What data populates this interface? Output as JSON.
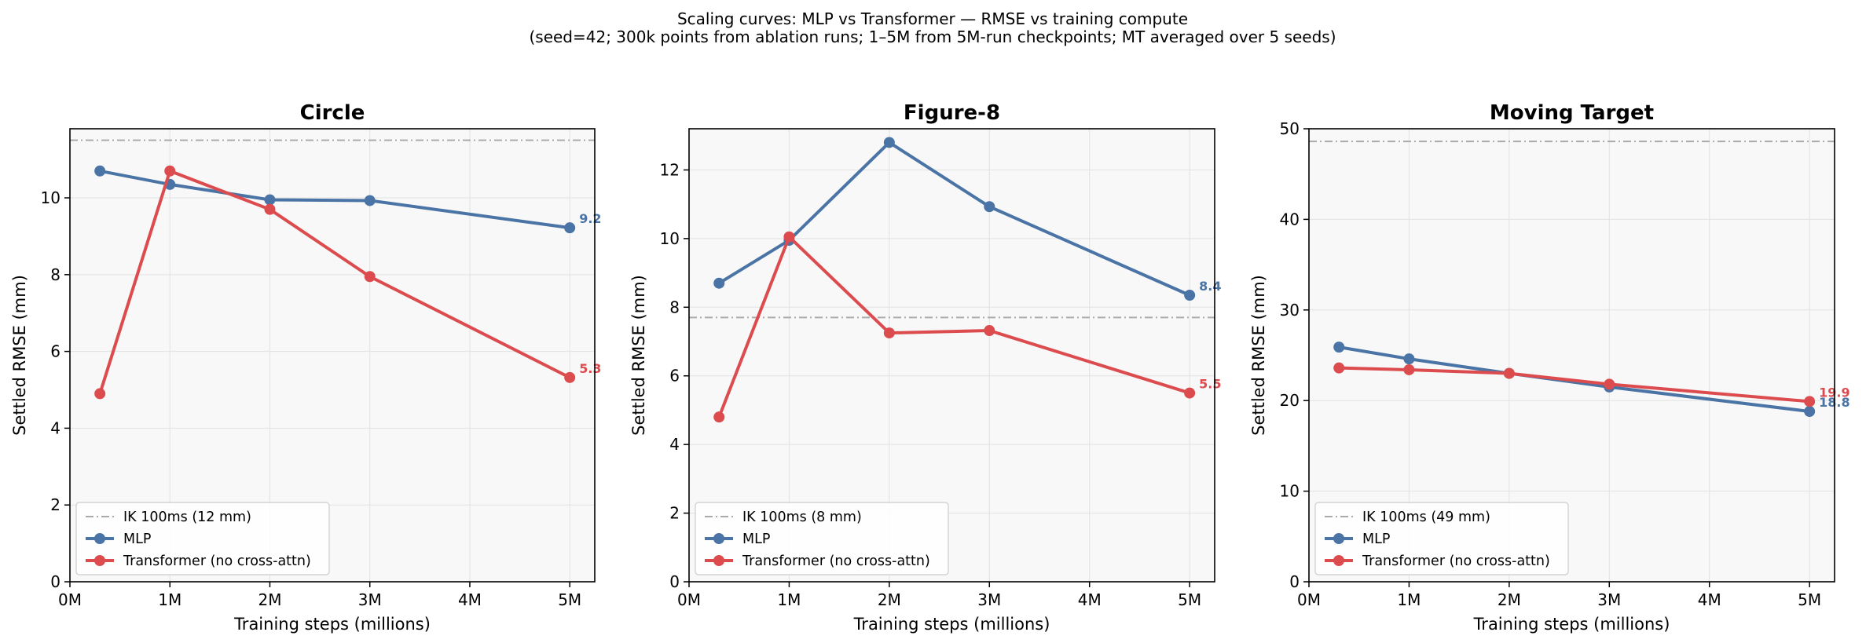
{
  "figure": {
    "title_line1": "Scaling curves: MLP vs Transformer — RMSE vs training compute",
    "title_line2": "(seed=42; 300k points from ablation runs; 1–5M from 5M-run checkpoints; MT averaged over 5 seeds)"
  },
  "colors": {
    "mlp": "#4a74a5",
    "transformer": "#dc4c4f",
    "ik": "#aaaaaa",
    "axes_bg": "#f8f8f8",
    "grid": "#e2e2e2"
  },
  "chart_data": [
    {
      "type": "line",
      "title": "Circle",
      "xlabel": "Training steps (millions)",
      "ylabel": "Settled RMSE (mm)",
      "xlim": [
        0,
        5.25
      ],
      "ylim": [
        0,
        11.8
      ],
      "xticks": [
        0,
        1,
        2,
        3,
        4,
        5
      ],
      "xtick_labels": [
        "0M",
        "1M",
        "2M",
        "3M",
        "4M",
        "5M"
      ],
      "yticks": [
        0,
        2,
        4,
        6,
        8,
        10
      ],
      "yticks_labels": [
        "0",
        "2",
        "4",
        "6",
        "8",
        "10"
      ],
      "grid": true,
      "legend_position": "lower-left",
      "reference_line": {
        "name": "IK 100ms (12 mm)",
        "y": 11.5
      },
      "series": [
        {
          "name": "MLP",
          "color_key": "mlp",
          "x": [
            0.3,
            1,
            2,
            3,
            5
          ],
          "y": [
            10.7,
            10.35,
            9.95,
            9.93,
            9.22
          ],
          "end_label": "9.2"
        },
        {
          "name": "Transformer (no cross-attn)",
          "color_key": "transformer",
          "x": [
            0.3,
            1,
            2,
            3,
            5
          ],
          "y": [
            4.9,
            10.7,
            9.7,
            7.95,
            5.32
          ],
          "end_label": "5.3"
        }
      ]
    },
    {
      "type": "line",
      "title": "Figure-8",
      "xlabel": "Training steps (millions)",
      "ylabel": "Settled RMSE (mm)",
      "xlim": [
        0,
        5.25
      ],
      "ylim": [
        0,
        13.2
      ],
      "xticks": [
        0,
        1,
        2,
        3,
        4,
        5
      ],
      "xtick_labels": [
        "0M",
        "1M",
        "2M",
        "3M",
        "4M",
        "5M"
      ],
      "yticks": [
        0,
        2,
        4,
        6,
        8,
        10,
        12
      ],
      "yticks_labels": [
        "0",
        "2",
        "4",
        "6",
        "8",
        "10",
        "12"
      ],
      "grid": true,
      "legend_position": "lower-left",
      "reference_line": {
        "name": "IK 100ms (8 mm)",
        "y": 7.7
      },
      "series": [
        {
          "name": "MLP",
          "color_key": "mlp",
          "x": [
            0.3,
            1,
            2,
            3,
            5
          ],
          "y": [
            8.7,
            9.95,
            12.8,
            10.93,
            8.35
          ],
          "end_label": "8.4"
        },
        {
          "name": "Transformer (no cross-attn)",
          "color_key": "transformer",
          "x": [
            0.3,
            1,
            2,
            3,
            5
          ],
          "y": [
            4.8,
            10.05,
            7.25,
            7.32,
            5.5
          ],
          "end_label": "5.5"
        }
      ]
    },
    {
      "type": "line",
      "title": "Moving Target",
      "xlabel": "Training steps (millions)",
      "ylabel": "Settled RMSE (mm)",
      "xlim": [
        0,
        5.25
      ],
      "ylim": [
        0,
        50
      ],
      "xticks": [
        0,
        1,
        2,
        3,
        4,
        5
      ],
      "xtick_labels": [
        "0M",
        "1M",
        "2M",
        "3M",
        "4M",
        "5M"
      ],
      "yticks": [
        0,
        10,
        20,
        30,
        40,
        50
      ],
      "yticks_labels": [
        "0",
        "10",
        "20",
        "30",
        "40",
        "50"
      ],
      "grid": true,
      "legend_position": "lower-left",
      "reference_line": {
        "name": "IK 100ms (49 mm)",
        "y": 48.6
      },
      "series": [
        {
          "name": "MLP",
          "color_key": "mlp",
          "x": [
            0.3,
            1,
            2,
            3,
            5
          ],
          "y": [
            25.9,
            24.6,
            23.0,
            21.5,
            18.8
          ],
          "end_label": "18.8"
        },
        {
          "name": "Transformer (no cross-attn)",
          "color_key": "transformer",
          "x": [
            0.3,
            1,
            2,
            3,
            5
          ],
          "y": [
            23.6,
            23.4,
            23.0,
            21.8,
            19.9
          ],
          "end_label": "19.9"
        }
      ]
    }
  ]
}
